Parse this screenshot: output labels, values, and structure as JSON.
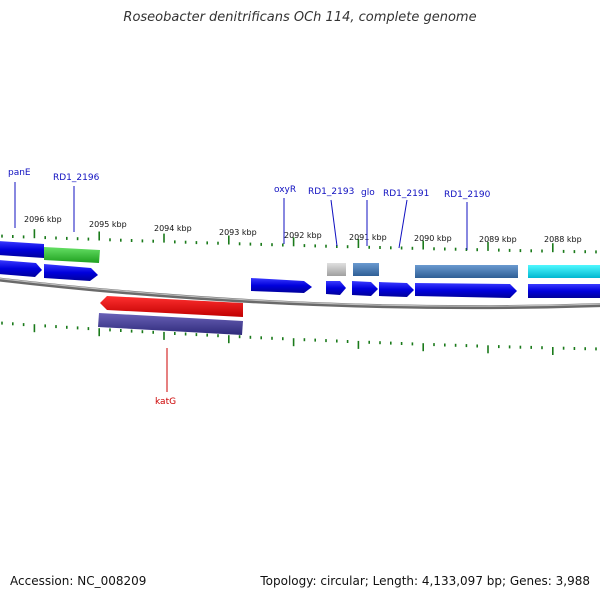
{
  "title": "Roseobacter denitrificans OCh 114, complete genome",
  "footer": {
    "accession": "Accession: NC_008209",
    "summary": "Topology: circular; Length: 4,133,097 bp; Genes: 3,988"
  },
  "colors": {
    "label_forward": "#1010c0",
    "label_reverse": "#cc0000",
    "tick": "#1a7a1a",
    "backbone": "#888888"
  },
  "scale_labels": [
    "2096 kbp",
    "2095 kbp",
    "2094 kbp",
    "2093 kbp",
    "2092 kbp",
    "2091 kbp",
    "2090 kbp",
    "2089 kbp",
    "2088 kbp"
  ],
  "gene_labels": [
    {
      "name": "panE",
      "strand": "forward"
    },
    {
      "name": "RD1_2196",
      "strand": "forward"
    },
    {
      "name": "oxyR",
      "strand": "forward"
    },
    {
      "name": "RD1_2193",
      "strand": "forward"
    },
    {
      "name": "glo",
      "strand": "forward"
    },
    {
      "name": "RD1_2191",
      "strand": "forward"
    },
    {
      "name": "RD1_2190",
      "strand": "forward"
    },
    {
      "name": "katG",
      "strand": "reverse"
    }
  ]
}
